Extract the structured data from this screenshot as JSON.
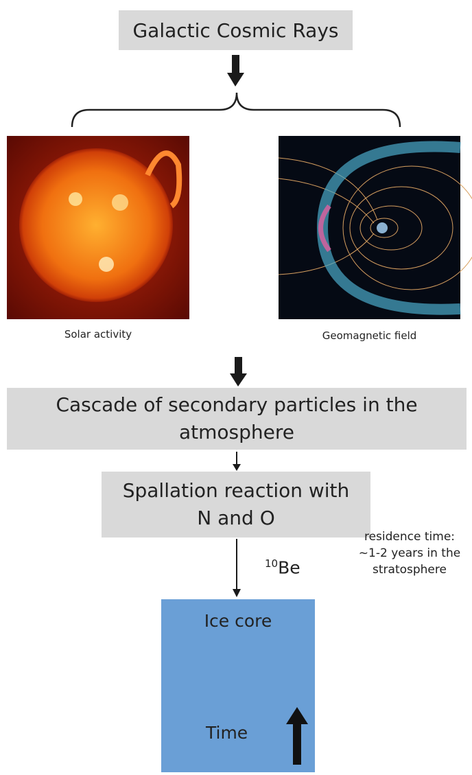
{
  "title": "Galactic Cosmic Rays",
  "modulators": [
    {
      "label": "Solar activity"
    },
    {
      "label": "Geomagnetic field"
    }
  ],
  "steps": [
    {
      "label": "Cascade of secondary particles in the atmosphere"
    },
    {
      "label": "Spallation reaction with N and O"
    }
  ],
  "isotope": {
    "superscript": "10",
    "symbol": "Be"
  },
  "note": "residence time: ~1-2 years in the stratosphere",
  "archive": {
    "label": "Ice core",
    "axis": "Time"
  }
}
